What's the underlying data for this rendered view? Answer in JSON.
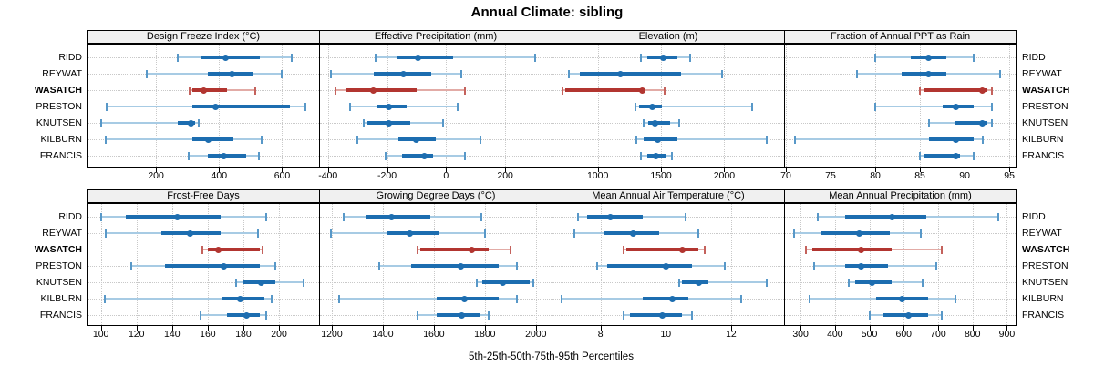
{
  "title": "Annual Climate: sibling",
  "footer": {
    "axis_label": "5th-25th-50th-75th-95th Percentiles"
  },
  "sites": [
    "RIDD",
    "REYWAT",
    "WASATCH",
    "PRESTON",
    "KNUTSEN",
    "KILBURN",
    "FRANCIS"
  ],
  "highlight_site": "WASATCH",
  "colors": {
    "blue_thin": "#a7cbe4",
    "blue_thick": "#1c6db0",
    "blue_cap": "#5898c8",
    "red_thin": "#e2aba6",
    "red_thick": "#b23530",
    "red_cap": "#c4625c",
    "grid": "#c9c9c9",
    "strip_bg": "#f0f0f0",
    "border": "#000000"
  },
  "chart_data": {
    "type": "dotplot-percentiles",
    "legend_position": "none",
    "grid": true,
    "percentiles": [
      "5th",
      "25th",
      "50th",
      "75th",
      "95th"
    ],
    "panels": [
      {
        "title": "Design Freeze Index (°C)",
        "row": 0,
        "col": 0,
        "xlim": [
          -20,
          720
        ],
        "ticks": [
          200,
          400,
          600
        ],
        "values": [
          [
            270,
            340,
            420,
            530,
            630
          ],
          [
            170,
            365,
            440,
            505,
            600
          ],
          [
            308,
            315,
            350,
            425,
            515
          ],
          [
            45,
            315,
            390,
            625,
            675
          ],
          [
            25,
            270,
            310,
            325,
            335
          ],
          [
            40,
            315,
            365,
            445,
            535
          ],
          [
            305,
            365,
            415,
            485,
            525
          ]
        ]
      },
      {
        "title": "Effective Precipitation (mm)",
        "row": 0,
        "col": 1,
        "xlim": [
          -430,
          360
        ],
        "ticks": [
          -400,
          -200,
          0,
          200
        ],
        "values": [
          [
            -240,
            -165,
            -95,
            25,
            300
          ],
          [
            -390,
            -245,
            -145,
            -50,
            50
          ],
          [
            -375,
            -340,
            -245,
            -100,
            65
          ],
          [
            -325,
            -235,
            -195,
            -135,
            40
          ],
          [
            -280,
            -265,
            -195,
            -120,
            -10
          ],
          [
            -300,
            -160,
            -100,
            -35,
            115
          ],
          [
            -205,
            -150,
            -75,
            -45,
            65
          ]
        ]
      },
      {
        "title": "Elevation (m)",
        "row": 0,
        "col": 2,
        "xlim": [
          635,
          2480
        ],
        "ticks": [
          1000,
          1500,
          2000
        ],
        "values": [
          [
            1340,
            1390,
            1520,
            1630,
            1730
          ],
          [
            775,
            860,
            1180,
            1655,
            1980
          ],
          [
            725,
            745,
            1350,
            1380,
            1530
          ],
          [
            1300,
            1330,
            1430,
            1510,
            2220
          ],
          [
            1365,
            1400,
            1450,
            1570,
            1645
          ],
          [
            1305,
            1365,
            1475,
            1630,
            2335
          ],
          [
            1340,
            1390,
            1460,
            1535,
            1585
          ]
        ]
      },
      {
        "title": "Fraction of Annual PPT as Rain",
        "row": 0,
        "col": 3,
        "xlim": [
          69.8,
          95.8
        ],
        "ticks": [
          70,
          75,
          80,
          85,
          90,
          95
        ],
        "values": [
          [
            80,
            84,
            86,
            88,
            91
          ],
          [
            78,
            83,
            86,
            88,
            94
          ],
          [
            85,
            85.5,
            92,
            92.5,
            93
          ],
          [
            80,
            87.5,
            89,
            91,
            93
          ],
          [
            86,
            89,
            92,
            92.5,
            93
          ],
          [
            71,
            86,
            89,
            91,
            92
          ],
          [
            85,
            85.5,
            89,
            89.5,
            91
          ]
        ]
      },
      {
        "title": "Frost-Free Days",
        "row": 1,
        "col": 0,
        "xlim": [
          92,
          223
        ],
        "ticks": [
          100,
          120,
          140,
          160,
          180,
          200
        ],
        "values": [
          [
            100,
            114,
            143,
            167,
            193
          ],
          [
            103,
            134,
            150,
            167,
            188
          ],
          [
            157,
            160,
            166,
            189,
            191
          ],
          [
            117,
            136,
            169,
            189,
            198
          ],
          [
            176,
            180,
            190,
            198,
            214
          ],
          [
            102,
            168,
            178,
            192,
            196
          ],
          [
            156,
            171,
            182,
            189,
            193
          ]
        ]
      },
      {
        "title": "Growing Degree Days (°C)",
        "row": 1,
        "col": 1,
        "xlim": [
          1150,
          2065
        ],
        "ticks": [
          1200,
          1400,
          1600,
          1800,
          2000
        ],
        "values": [
          [
            1245,
            1335,
            1435,
            1585,
            1785
          ],
          [
            1195,
            1415,
            1505,
            1620,
            1800
          ],
          [
            1535,
            1545,
            1750,
            1815,
            1900
          ],
          [
            1385,
            1510,
            1705,
            1855,
            1925
          ],
          [
            1770,
            1790,
            1870,
            1975,
            1990
          ],
          [
            1230,
            1610,
            1720,
            1855,
            1925
          ],
          [
            1535,
            1610,
            1710,
            1780,
            1815
          ]
        ]
      },
      {
        "title": "Mean Annual Air Temperature (°C)",
        "row": 1,
        "col": 2,
        "xlim": [
          6.5,
          13.65
        ],
        "ticks": [
          8,
          10,
          12
        ],
        "values": [
          [
            7.3,
            7.6,
            8.3,
            9.3,
            10.6
          ],
          [
            7.2,
            8.1,
            9.0,
            9.8,
            11.0
          ],
          [
            8.7,
            8.8,
            10.5,
            11.0,
            11.2
          ],
          [
            7.9,
            8.2,
            10.0,
            10.8,
            11.8
          ],
          [
            10.4,
            10.5,
            11.0,
            11.3,
            13.1
          ],
          [
            6.8,
            9.3,
            10.2,
            10.7,
            12.3
          ],
          [
            8.7,
            8.9,
            9.9,
            10.5,
            10.8
          ]
        ]
      },
      {
        "title": "Mean Annual Precipitation (mm)",
        "row": 1,
        "col": 3,
        "xlim": [
          252,
          928
        ],
        "ticks": [
          300,
          400,
          500,
          600,
          700,
          800,
          900
        ],
        "values": [
          [
            350,
            430,
            565,
            665,
            875
          ],
          [
            280,
            360,
            470,
            560,
            650
          ],
          [
            315,
            335,
            475,
            565,
            710
          ],
          [
            340,
            430,
            475,
            555,
            695
          ],
          [
            440,
            460,
            508,
            565,
            655
          ],
          [
            325,
            520,
            595,
            670,
            750
          ],
          [
            500,
            540,
            615,
            670,
            710
          ]
        ]
      }
    ]
  }
}
